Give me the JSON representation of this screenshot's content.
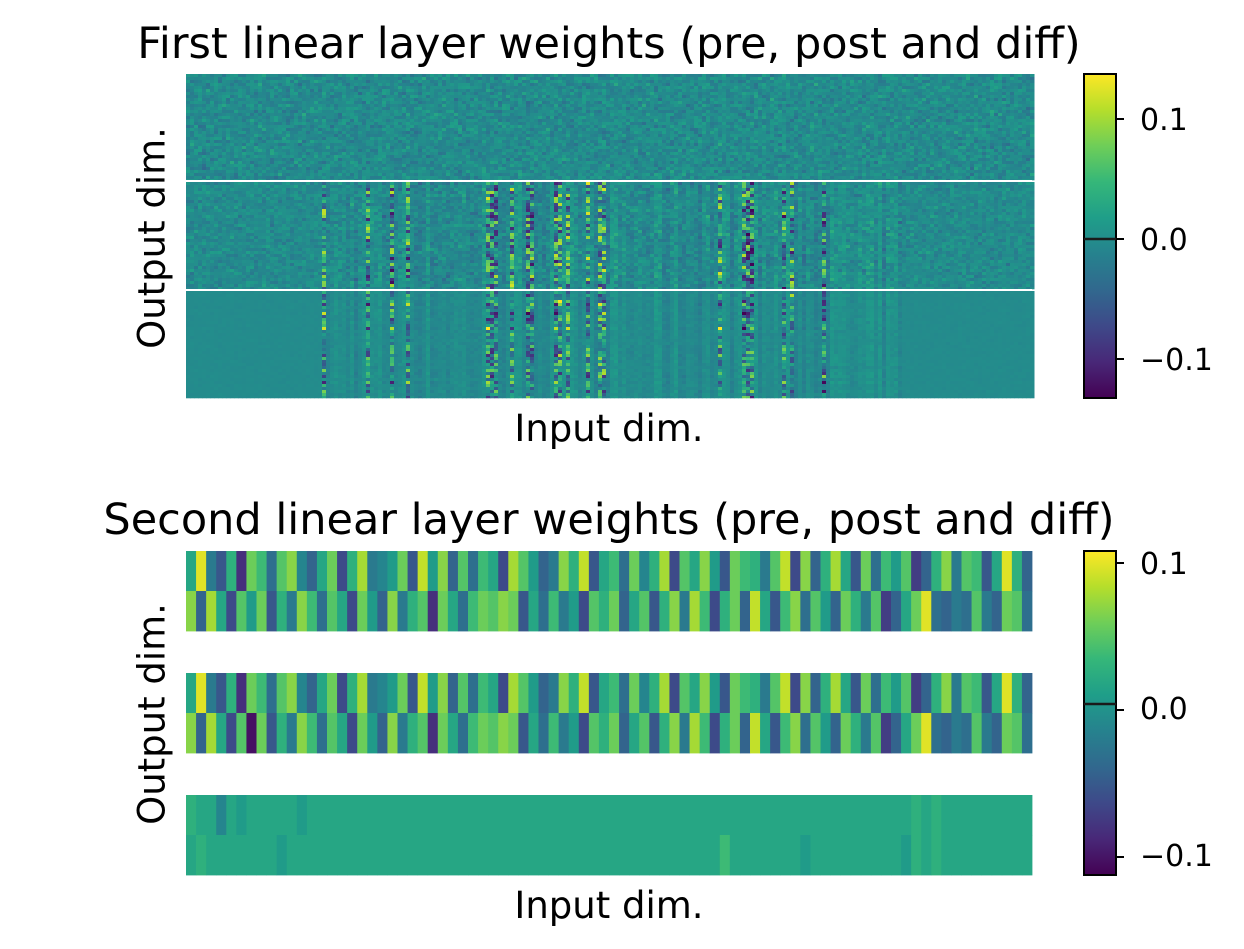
{
  "colors": {
    "viridis": [
      "#440154",
      "#482878",
      "#3e4989",
      "#31688e",
      "#26828e",
      "#1f9e89",
      "#35b779",
      "#6ece58",
      "#b5de2b",
      "#fde725"
    ],
    "gap": "#ffffff"
  },
  "chart_data": [
    {
      "type": "heatmap",
      "title": "First linear layer weights (pre, post and diff)",
      "xlabel": "Input dim.",
      "ylabel": "Output dim.",
      "blocks": [
        "pre",
        "post",
        "diff"
      ],
      "colorbar": {
        "vmin": -0.13,
        "vmax": 0.14,
        "ticks": [
          0.1,
          0.0,
          -0.1
        ],
        "tick_labels": [
          "0.1",
          "0.0",
          "−0.1"
        ]
      }
    },
    {
      "type": "heatmap",
      "title": "Second linear layer weights (pre, post and diff)",
      "xlabel": "Input dim.",
      "ylabel": "Output dim.",
      "blocks": [
        "pre",
        "post",
        "diff"
      ],
      "rows_per_block": 2,
      "columns": 84,
      "colorbar": {
        "vmin": -0.11,
        "vmax": 0.11,
        "ticks": [
          0.1,
          0.0,
          -0.1
        ],
        "tick_labels": [
          "0.1",
          "0.0",
          "−0.1"
        ]
      },
      "pre_rows": [
        [
          0.02,
          0.1,
          -0.02,
          -0.05,
          0.03,
          -0.08,
          0.06,
          0.04,
          -0.03,
          0.05,
          0.07,
          -0.01,
          -0.04,
          0.02,
          0.06,
          -0.06,
          0.03,
          0.08,
          -0.02,
          -0.01,
          0.01,
          0.06,
          -0.05,
          0.09,
          0.01,
          0.07,
          -0.04,
          0.05,
          -0.03,
          0.04,
          0.02,
          -0.06,
          0.08,
          0.05,
          0.01,
          -0.04,
          -0.02,
          0.07,
          0.03,
          0.09,
          -0.05,
          0.02,
          0.04,
          -0.03,
          0.06,
          -0.01,
          0.03,
          0.08,
          -0.06,
          0.05,
          0.02,
          0.07,
          0.01,
          -0.05,
          0.06,
          0.04,
          0.03,
          -0.02,
          0.05,
          0.09,
          -0.06,
          0.07,
          -0.04,
          0.03,
          0.08,
          0.02,
          -0.05,
          0.06,
          -0.03,
          0.04,
          0.01,
          0.05,
          -0.07,
          -0.04,
          0.03,
          0.07,
          -0.02,
          0.05,
          0.04,
          -0.05,
          0.02,
          0.1,
          0.03,
          -0.04
        ],
        [
          0.07,
          -0.04,
          0.08,
          0.02,
          -0.06,
          0.05,
          0.01,
          0.06,
          -0.05,
          0.03,
          -0.02,
          0.07,
          0.04,
          -0.03,
          0.05,
          0.02,
          -0.06,
          0.06,
          0.01,
          -0.04,
          0.07,
          -0.02,
          0.03,
          0.05,
          -0.08,
          0.06,
          0.02,
          -0.03,
          0.04,
          0.06,
          0.05,
          0.07,
          0.06,
          -0.05,
          0.02,
          -0.03,
          0.04,
          -0.02,
          0.01,
          -0.06,
          0.05,
          0.03,
          0.06,
          -0.04,
          0.02,
          0.05,
          -0.05,
          0.03,
          0.07,
          -0.02,
          0.08,
          0.04,
          -0.06,
          0.03,
          0.06,
          -0.04,
          0.09,
          0.02,
          -0.05,
          0.04,
          0.07,
          -0.03,
          0.05,
          0.01,
          -0.04,
          0.06,
          0.03,
          -0.02,
          0.05,
          -0.07,
          -0.04,
          0.02,
          0.06,
          0.1,
          -0.03,
          -0.04,
          -0.02,
          -0.03,
          0.05,
          -0.02,
          -0.04,
          0.06,
          0.05,
          -0.03
        ]
      ],
      "post_rows": [
        [
          0.02,
          0.1,
          -0.02,
          -0.05,
          0.03,
          -0.08,
          0.06,
          0.04,
          -0.03,
          0.05,
          0.07,
          -0.01,
          -0.04,
          0.02,
          0.06,
          -0.06,
          0.03,
          0.08,
          -0.02,
          -0.01,
          0.01,
          0.06,
          -0.05,
          0.09,
          0.01,
          0.07,
          -0.04,
          0.05,
          -0.03,
          0.04,
          0.02,
          -0.06,
          0.08,
          0.05,
          0.01,
          -0.04,
          -0.02,
          0.07,
          0.03,
          0.09,
          -0.05,
          0.02,
          0.04,
          -0.03,
          0.06,
          -0.01,
          0.03,
          0.08,
          -0.06,
          0.05,
          0.02,
          0.07,
          0.01,
          -0.05,
          0.06,
          0.04,
          0.03,
          -0.02,
          0.05,
          0.09,
          -0.06,
          0.07,
          -0.04,
          0.03,
          0.08,
          0.02,
          -0.05,
          0.06,
          -0.03,
          0.04,
          0.01,
          0.05,
          -0.07,
          -0.04,
          0.03,
          0.07,
          -0.02,
          0.05,
          0.04,
          -0.05,
          0.02,
          0.1,
          0.03,
          -0.04
        ],
        [
          0.07,
          -0.04,
          0.08,
          0.02,
          -0.06,
          0.05,
          -0.1,
          0.06,
          -0.05,
          0.03,
          -0.02,
          0.07,
          0.04,
          -0.03,
          0.05,
          0.02,
          -0.06,
          0.06,
          0.01,
          -0.04,
          0.07,
          -0.02,
          0.03,
          0.05,
          -0.08,
          0.06,
          0.02,
          -0.03,
          0.04,
          0.06,
          0.05,
          0.07,
          0.06,
          -0.05,
          0.02,
          -0.03,
          0.04,
          -0.02,
          0.01,
          -0.06,
          0.05,
          0.03,
          0.06,
          -0.04,
          0.02,
          0.05,
          -0.05,
          0.03,
          0.07,
          -0.02,
          0.08,
          0.04,
          -0.06,
          0.03,
          0.06,
          -0.04,
          0.09,
          0.02,
          -0.05,
          0.04,
          0.07,
          -0.03,
          0.05,
          0.01,
          -0.04,
          0.06,
          0.03,
          -0.02,
          0.05,
          -0.07,
          -0.04,
          0.02,
          0.06,
          0.1,
          -0.03,
          -0.04,
          -0.02,
          -0.03,
          0.05,
          -0.02,
          -0.04,
          0.06,
          0.05,
          -0.03
        ]
      ],
      "diff_rows": [
        [
          0.03,
          0.02,
          0.02,
          -0.01,
          0.02,
          0.01,
          0.02,
          0.02,
          0.02,
          0.02,
          0.02,
          0.01,
          0.02,
          0.02,
          0.02,
          0.02,
          0.02,
          0.02,
          0.02,
          0.02,
          0.02,
          0.02,
          0.02,
          0.02,
          0.02,
          0.02,
          0.02,
          0.02,
          0.02,
          0.02,
          0.02,
          0.02,
          0.02,
          0.02,
          0.02,
          0.02,
          0.02,
          0.02,
          0.02,
          0.02,
          0.02,
          0.02,
          0.02,
          0.02,
          0.02,
          0.02,
          0.02,
          0.02,
          0.02,
          0.02,
          0.02,
          0.02,
          0.02,
          0.02,
          0.02,
          0.02,
          0.02,
          0.02,
          0.02,
          0.02,
          0.02,
          0.02,
          0.02,
          0.02,
          0.02,
          0.02,
          0.02,
          0.02,
          0.02,
          0.02,
          0.02,
          0.02,
          0.03,
          0.02,
          0.03,
          0.02,
          0.02,
          0.02,
          0.02,
          0.02,
          0.02,
          0.02,
          0.02,
          0.02
        ],
        [
          0.02,
          0.03,
          0.02,
          0.02,
          0.02,
          0.02,
          0.02,
          0.02,
          0.02,
          0.01,
          0.02,
          0.02,
          0.02,
          0.02,
          0.02,
          0.02,
          0.02,
          0.02,
          0.02,
          0.02,
          0.02,
          0.02,
          0.02,
          0.02,
          0.02,
          0.02,
          0.02,
          0.02,
          0.02,
          0.02,
          0.02,
          0.02,
          0.02,
          0.02,
          0.02,
          0.02,
          0.02,
          0.02,
          0.02,
          0.02,
          0.02,
          0.02,
          0.02,
          0.02,
          0.02,
          0.02,
          0.02,
          0.02,
          0.02,
          0.02,
          0.02,
          0.02,
          0.02,
          0.04,
          0.02,
          0.02,
          0.02,
          0.02,
          0.02,
          0.02,
          0.02,
          0.01,
          0.02,
          0.02,
          0.02,
          0.02,
          0.02,
          0.02,
          0.02,
          0.02,
          0.02,
          0.01,
          0.03,
          0.02,
          0.03,
          0.02,
          0.02,
          0.02,
          0.02,
          0.02,
          0.02,
          0.02,
          0.02,
          0.02
        ]
      ]
    }
  ]
}
